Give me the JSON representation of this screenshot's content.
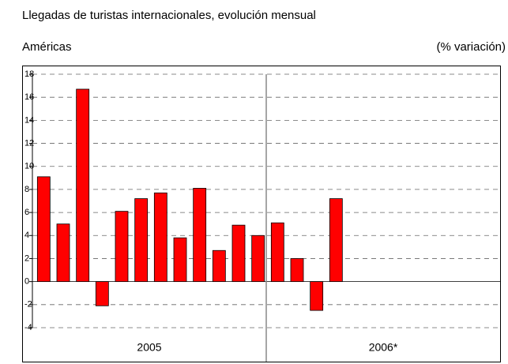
{
  "chart_data": {
    "type": "bar",
    "title": "Llegadas de turistas internacionales, evolución mensual",
    "subtitle": "Américas",
    "unit_label": "(% variación)",
    "groups": [
      "2005",
      "2006*"
    ],
    "categories": [
      null,
      null,
      null,
      null,
      null,
      null,
      null,
      null,
      null,
      null,
      null,
      null,
      null,
      null,
      null,
      null,
      null,
      null,
      null,
      null,
      null,
      null,
      null,
      null
    ],
    "values": [
      9.1,
      5.0,
      16.7,
      -2.1,
      6.1,
      7.2,
      7.7,
      3.8,
      8.1,
      2.7,
      4.9,
      4.0,
      5.1,
      2.0,
      -2.5,
      7.2,
      null,
      null,
      null,
      null,
      null,
      null,
      null,
      null
    ],
    "color": "#ff0000",
    "ylim": [
      -4,
      18
    ],
    "yticks": [
      -4,
      -2,
      0,
      2,
      4,
      6,
      8,
      10,
      12,
      14,
      16,
      18
    ],
    "grid": true
  }
}
